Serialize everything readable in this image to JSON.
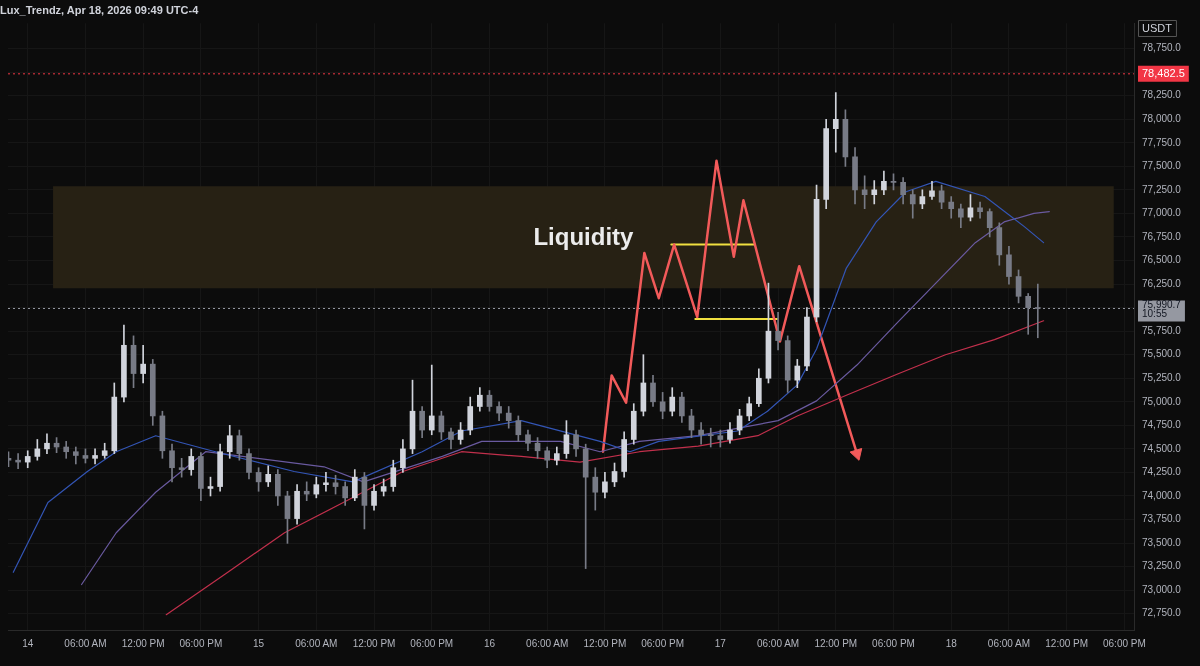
{
  "chart_data": {
    "type": "candlestick",
    "title": "Lux_Trendz, Apr 18, 2026 09:49 UTC-4",
    "ylabel": "USDT",
    "colors": [
      "#787b86",
      "#787b86",
      "#d1d4dc",
      "#d1d4dc",
      "#d1d4dc",
      "#787b86",
      "#787b86",
      "#787b86",
      "#787b86",
      "#d1d4dc",
      "#d1d4dc",
      "#d1d4dc",
      "#d1d4dc",
      "#787b86",
      "#d1d4dc",
      "#787b86",
      "#787b86",
      "#787b86",
      "#787b86",
      "#d1d4dc",
      "#787b86",
      "#d1d4dc",
      "#d1d4dc",
      "#d1d4dc",
      "#787b86",
      "#787b86",
      "#787b86",
      "#d1d4dc",
      "#787b86",
      "#787b86",
      "#d1d4dc",
      "#787b86",
      "#d1d4dc",
      "#d1d4dc",
      "#787b86",
      "#787b86",
      "#d1d4dc",
      "#787b86",
      "#d1d4dc",
      "#d1d4dc",
      "#d1d4dc",
      "#d1d4dc",
      "#d1d4dc",
      "#787b86",
      "#d1d4dc",
      "#787b86",
      "#787b86",
      "#d1d4dc",
      "#d1d4dc",
      "#d1d4dc",
      "#787b86",
      "#787b86",
      "#787b86",
      "#787b86",
      "#787b86",
      "#787b86",
      "#787b86",
      "#d1d4dc",
      "#d1d4dc",
      "#787b86",
      "#787b86",
      "#787b86",
      "#d1d4dc",
      "#d1d4dc",
      "#d1d4dc",
      "#d1d4dc",
      "#d1d4dc",
      "#787b86",
      "#787b86",
      "#d1d4dc",
      "#787b86",
      "#787b86",
      "#787b86",
      "#787b86",
      "#787b86",
      "#d1d4dc",
      "#d1d4dc",
      "#d1d4dc",
      "#d1d4dc",
      "#d1d4dc",
      "#787b86",
      "#787b86",
      "#d1d4dc",
      "#d1d4dc",
      "#d1d4dc",
      "#d1d4dc",
      "#d1d4dc",
      "#787b86",
      "#787b86",
      "#787b86",
      "#d1d4dc",
      "#d1d4dc",
      "#787b86",
      "#787b86",
      "#787b86",
      "#d1d4dc",
      "#d1d4dc",
      "#787b86",
      "#787b86",
      "#787b86",
      "#d1d4dc",
      "#787b86",
      "#787b86",
      "#787b86",
      "#787b86",
      "#787b86",
      "#787b86",
      "#787b86"
    ],
    "x": [
      "2026-04-13T22:00",
      "2026-04-13T23:00",
      "2026-04-14T00:00",
      "2026-04-14T01:00",
      "2026-04-14T02:00",
      "2026-04-14T03:00",
      "2026-04-14T04:00",
      "2026-04-14T05:00",
      "2026-04-14T06:00",
      "2026-04-14T07:00",
      "2026-04-14T08:00",
      "2026-04-14T09:00",
      "2026-04-14T10:00",
      "2026-04-14T11:00",
      "2026-04-14T12:00",
      "2026-04-14T13:00",
      "2026-04-14T14:00",
      "2026-04-14T15:00",
      "2026-04-14T16:00",
      "2026-04-14T17:00",
      "2026-04-14T18:00",
      "2026-04-14T19:00",
      "2026-04-14T20:00",
      "2026-04-14T21:00",
      "2026-04-14T22:00",
      "2026-04-14T23:00",
      "2026-04-15T00:00",
      "2026-04-15T01:00",
      "2026-04-15T02:00",
      "2026-04-15T03:00",
      "2026-04-15T04:00",
      "2026-04-15T05:00",
      "2026-04-15T06:00",
      "2026-04-15T07:00",
      "2026-04-15T08:00",
      "2026-04-15T09:00",
      "2026-04-15T10:00",
      "2026-04-15T11:00",
      "2026-04-15T12:00",
      "2026-04-15T13:00",
      "2026-04-15T14:00",
      "2026-04-15T15:00",
      "2026-04-15T16:00",
      "2026-04-15T17:00",
      "2026-04-15T18:00",
      "2026-04-15T19:00",
      "2026-04-15T20:00",
      "2026-04-15T21:00",
      "2026-04-15T22:00",
      "2026-04-15T23:00",
      "2026-04-16T00:00",
      "2026-04-16T01:00",
      "2026-04-16T02:00",
      "2026-04-16T03:00",
      "2026-04-16T04:00",
      "2026-04-16T05:00",
      "2026-04-16T06:00",
      "2026-04-16T07:00",
      "2026-04-16T08:00",
      "2026-04-16T09:00",
      "2026-04-16T10:00",
      "2026-04-16T11:00",
      "2026-04-16T12:00",
      "2026-04-16T13:00",
      "2026-04-16T14:00",
      "2026-04-16T15:00",
      "2026-04-16T16:00",
      "2026-04-16T17:00",
      "2026-04-16T18:00",
      "2026-04-16T19:00",
      "2026-04-16T20:00",
      "2026-04-16T21:00",
      "2026-04-16T22:00",
      "2026-04-16T23:00",
      "2026-04-17T00:00",
      "2026-04-17T01:00",
      "2026-04-17T02:00",
      "2026-04-17T03:00",
      "2026-04-17T04:00",
      "2026-04-17T05:00",
      "2026-04-17T06:00",
      "2026-04-17T07:00",
      "2026-04-17T08:00",
      "2026-04-17T09:00",
      "2026-04-17T10:00",
      "2026-04-17T11:00",
      "2026-04-17T12:00",
      "2026-04-17T13:00",
      "2026-04-17T14:00",
      "2026-04-17T15:00",
      "2026-04-17T16:00",
      "2026-04-17T17:00",
      "2026-04-17T18:00",
      "2026-04-17T19:00",
      "2026-04-17T20:00",
      "2026-04-17T21:00",
      "2026-04-17T22:00",
      "2026-04-17T23:00",
      "2026-04-18T00:00",
      "2026-04-18T01:00",
      "2026-04-18T02:00",
      "2026-04-18T03:00",
      "2026-04-18T04:00",
      "2026-04-18T05:00",
      "2026-04-18T06:00",
      "2026-04-18T07:00",
      "2026-04-18T08:00",
      "2026-04-18T09:00"
    ],
    "ohlc": [
      [
        74400,
        74470,
        74310,
        74380
      ],
      [
        74380,
        74450,
        74290,
        74360
      ],
      [
        74360,
        74480,
        74300,
        74420
      ],
      [
        74420,
        74600,
        74380,
        74500
      ],
      [
        74500,
        74660,
        74450,
        74560
      ],
      [
        74560,
        74620,
        74460,
        74520
      ],
      [
        74520,
        74580,
        74400,
        74470
      ],
      [
        74470,
        74520,
        74340,
        74430
      ],
      [
        74430,
        74500,
        74350,
        74400
      ],
      [
        74400,
        74500,
        74340,
        74430
      ],
      [
        74430,
        74560,
        74400,
        74480
      ],
      [
        74480,
        75200,
        74450,
        75050
      ],
      [
        75050,
        75815,
        75000,
        75600
      ],
      [
        75600,
        75700,
        75150,
        75300
      ],
      [
        75300,
        75600,
        75200,
        75400
      ],
      [
        75400,
        75450,
        74750,
        74850
      ],
      [
        74850,
        74900,
        74400,
        74480
      ],
      [
        74480,
        74550,
        74150,
        74300
      ],
      [
        74300,
        74400,
        74200,
        74280
      ],
      [
        74280,
        74500,
        74220,
        74420
      ],
      [
        74420,
        74460,
        73950,
        74080
      ],
      [
        74080,
        74200,
        74000,
        74100
      ],
      [
        74100,
        74550,
        74050,
        74470
      ],
      [
        74470,
        74750,
        74400,
        74640
      ],
      [
        74640,
        74700,
        74380,
        74450
      ],
      [
        74450,
        74500,
        74180,
        74250
      ],
      [
        74250,
        74300,
        74050,
        74150
      ],
      [
        74150,
        74320,
        74100,
        74230
      ],
      [
        74230,
        74280,
        73900,
        74000
      ],
      [
        74000,
        74050,
        73497,
        73760
      ],
      [
        73760,
        74120,
        73700,
        74050
      ],
      [
        74050,
        74150,
        73950,
        74020
      ],
      [
        74020,
        74200,
        73980,
        74120
      ],
      [
        74120,
        74250,
        74050,
        74140
      ],
      [
        74140,
        74220,
        74020,
        74100
      ],
      [
        74100,
        74150,
        73900,
        73980
      ],
      [
        73980,
        74280,
        73950,
        74200
      ],
      [
        74200,
        74250,
        73650,
        73900
      ],
      [
        73900,
        74120,
        73850,
        74050
      ],
      [
        74050,
        74180,
        74000,
        74100
      ],
      [
        74100,
        74380,
        74050,
        74300
      ],
      [
        74300,
        74600,
        74250,
        74500
      ],
      [
        74500,
        75230,
        74450,
        74900
      ],
      [
        74900,
        74950,
        74620,
        74700
      ],
      [
        74700,
        75390,
        74650,
        74850
      ],
      [
        74850,
        74900,
        74600,
        74680
      ],
      [
        74680,
        74720,
        74500,
        74600
      ],
      [
        74600,
        74780,
        74550,
        74700
      ],
      [
        74700,
        75050,
        74650,
        74950
      ],
      [
        74950,
        75150,
        74900,
        75070
      ],
      [
        75070,
        75120,
        74900,
        74950
      ],
      [
        74950,
        75000,
        74800,
        74880
      ],
      [
        74880,
        74950,
        74720,
        74800
      ],
      [
        74800,
        74850,
        74580,
        74650
      ],
      [
        74650,
        74700,
        74480,
        74560
      ],
      [
        74560,
        74620,
        74400,
        74480
      ],
      [
        74480,
        74520,
        74300,
        74380
      ],
      [
        74380,
        74520,
        74330,
        74450
      ],
      [
        74450,
        74800,
        74400,
        74650
      ],
      [
        74650,
        74700,
        74420,
        74500
      ],
      [
        74500,
        74550,
        73229,
        74200
      ],
      [
        74200,
        74300,
        73850,
        74040
      ],
      [
        74040,
        74250,
        73980,
        74150
      ],
      [
        74150,
        74350,
        74100,
        74260
      ],
      [
        74260,
        74680,
        74200,
        74600
      ],
      [
        74600,
        74980,
        74550,
        74900
      ],
      [
        74900,
        75500,
        74850,
        75200
      ],
      [
        75200,
        75280,
        74950,
        75000
      ],
      [
        75000,
        75100,
        74820,
        74900
      ],
      [
        74900,
        75150,
        74850,
        75050
      ],
      [
        75050,
        75100,
        74780,
        74850
      ],
      [
        74850,
        74920,
        74620,
        74700
      ],
      [
        74700,
        74780,
        74550,
        74650
      ],
      [
        74650,
        74720,
        74520,
        74640
      ],
      [
        74640,
        74700,
        74520,
        74600
      ],
      [
        74600,
        74780,
        74560,
        74700
      ],
      [
        74700,
        74920,
        74650,
        74850
      ],
      [
        74850,
        75050,
        74800,
        74980
      ],
      [
        74980,
        75350,
        74950,
        75250
      ],
      [
        75250,
        76260,
        75200,
        75750
      ],
      [
        75750,
        75950,
        75550,
        75650
      ],
      [
        75650,
        75700,
        75100,
        75230
      ],
      [
        75230,
        75450,
        75150,
        75380
      ],
      [
        75380,
        76000,
        75330,
        75900
      ],
      [
        75900,
        77300,
        75850,
        77150
      ],
      [
        77150,
        78000,
        77050,
        77900
      ],
      [
        77900,
        78284,
        77650,
        78000
      ],
      [
        78000,
        78100,
        77500,
        77600
      ],
      [
        77600,
        77700,
        77100,
        77250
      ],
      [
        77250,
        77400,
        77050,
        77200
      ],
      [
        77200,
        77350,
        77100,
        77250
      ],
      [
        77250,
        77450,
        77200,
        77340
      ],
      [
        77340,
        77420,
        77250,
        77330
      ],
      [
        77330,
        77380,
        77100,
        77200
      ],
      [
        77200,
        77250,
        76950,
        77100
      ],
      [
        77100,
        77250,
        77050,
        77180
      ],
      [
        77180,
        77340,
        77150,
        77240
      ],
      [
        77240,
        77300,
        77050,
        77120
      ],
      [
        77120,
        77180,
        76950,
        77050
      ],
      [
        77050,
        77100,
        76850,
        76960
      ],
      [
        76960,
        77200,
        76920,
        77060
      ],
      [
        77060,
        77120,
        76950,
        77020
      ],
      [
        77020,
        77050,
        76750,
        76850
      ],
      [
        76850,
        76900,
        76450,
        76560
      ],
      [
        76560,
        76650,
        76250,
        76330
      ],
      [
        76330,
        76400,
        76050,
        76120
      ],
      [
        76120,
        76150,
        75717,
        76000
      ],
      [
        76000,
        76250,
        75680,
        75990.7
      ]
    ],
    "series": [
      {
        "type": "line",
        "color": "#3355b5",
        "x": [
          "2026-04-13T22:30",
          "2026-04-14T02:06",
          "2026-04-14T06:12",
          "2026-04-14T09:12",
          "2026-04-14T13:18",
          "2026-04-14T19:30",
          "2026-04-15T03:42",
          "2026-04-15T09:48",
          "2026-04-15T17:00",
          "2026-04-15T21:06",
          "2026-04-16T03:18",
          "2026-04-16T11:30",
          "2026-04-16T14:36",
          "2026-04-16T17:36",
          "2026-04-17T01:48",
          "2026-04-17T04:54",
          "2026-04-17T08:00",
          "2026-04-17T10:00",
          "2026-04-17T13:06",
          "2026-04-17T16:12",
          "2026-04-17T19:18",
          "2026-04-17T22:24",
          "2026-04-18T03:30",
          "2026-04-18T07:36",
          "2026-04-18T09:36"
        ],
        "values": [
          73190,
          73930,
          74260,
          74470,
          74640,
          74470,
          74260,
          74150,
          74470,
          74690,
          74800,
          74580,
          74470,
          74580,
          74690,
          74900,
          75180,
          75560,
          76420,
          76910,
          77230,
          77340,
          77180,
          76860,
          76690
        ]
      },
      {
        "type": "line",
        "color": "#6a5aa0",
        "x": [
          "2026-04-14T05:36",
          "2026-04-14T09:12",
          "2026-04-14T13:18",
          "2026-04-14T18:30",
          "2026-04-15T06:48",
          "2026-04-15T10:54",
          "2026-04-15T19:06",
          "2026-04-15T23:12",
          "2026-04-16T07:24",
          "2026-04-16T11:30",
          "2026-04-16T15:36",
          "2026-04-16T21:42",
          "2026-04-17T06:00",
          "2026-04-17T10:00",
          "2026-04-17T14:12",
          "2026-04-17T18:18",
          "2026-04-17T22:24",
          "2026-04-18T02:30",
          "2026-04-18T05:30",
          "2026-04-18T08:36",
          "2026-04-18T10:12"
        ],
        "values": [
          73060,
          73610,
          74040,
          74470,
          74310,
          74150,
          74420,
          74580,
          74580,
          74470,
          74580,
          74640,
          74800,
          75010,
          75390,
          75830,
          76260,
          76690,
          76910,
          77000,
          77020
        ]
      },
      {
        "type": "line",
        "color": "#c2304c",
        "x": [
          "2026-04-14T14:24",
          "2026-04-14T20:30",
          "2026-04-15T02:42",
          "2026-04-15T08:48",
          "2026-04-15T15:00",
          "2026-04-15T21:06",
          "2026-04-16T03:18",
          "2026-04-16T09:24",
          "2026-04-16T15:36",
          "2026-04-16T21:42",
          "2026-04-17T03:54",
          "2026-04-17T08:00",
          "2026-04-17T13:06",
          "2026-04-17T18:18",
          "2026-04-17T23:24",
          "2026-04-18T04:30",
          "2026-04-18T09:36"
        ],
        "values": [
          72740,
          73170,
          73610,
          73930,
          74260,
          74470,
          74420,
          74360,
          74470,
          74530,
          74640,
          74850,
          75070,
          75290,
          75500,
          75660,
          75860
        ]
      },
      {
        "type": "line",
        "color": "#f25a5a",
        "x": [
          "2026-04-16T11:48",
          "2026-04-16T12:42",
          "2026-04-16T14:12",
          "2026-04-16T16:06",
          "2026-04-16T17:36",
          "2026-04-16T19:12",
          "2026-04-16T21:36",
          "2026-04-16T23:36",
          "2026-04-17T01:24",
          "2026-04-17T02:24",
          "2026-04-17T06:12",
          "2026-04-17T08:12",
          "2026-04-17T14:12"
        ],
        "values": [
          74470,
          75280,
          74990,
          76580,
          76100,
          76670,
          75900,
          77560,
          76540,
          77140,
          75640,
          76440,
          74450
        ]
      },
      {
        "type": "line",
        "color": "#f0e040",
        "x": [
          "2026-04-16T18:54",
          "2026-04-17T03:30"
        ],
        "values": [
          76670,
          76670
        ]
      },
      {
        "type": "line",
        "color": "#f0e040",
        "x": [
          "2026-04-16T21:24",
          "2026-04-17T05:54"
        ],
        "values": [
          75880,
          75880
        ]
      }
    ],
    "bands": [
      {
        "axis": "y",
        "from": 76205,
        "to": 77288,
        "color": "#272114",
        "label": "Liquidity"
      }
    ],
    "ref_lines": [
      {
        "axis": "y",
        "value": 78482.5,
        "label": "78,482.5",
        "color": "#f23645",
        "line_style": "dotted"
      },
      {
        "axis": "y",
        "value": 75990.7,
        "label": "75,990.7",
        "color": "#9598a1",
        "line_style": "dotted"
      }
    ],
    "annotations": [
      "10:55"
    ],
    "xlim": [
      "2026-04-13T21:57",
      "2026-04-18T19:00"
    ],
    "xticks": [
      {
        "value": "2026-04-14",
        "label": "14"
      },
      {
        "value": "2026-04-14T06:00",
        "label": "06:00 AM"
      },
      {
        "value": "2026-04-14T12:00",
        "label": "12:00 PM"
      },
      {
        "value": "2026-04-14T18:00",
        "label": "06:00 PM"
      },
      {
        "value": "2026-04-15",
        "label": "15"
      },
      {
        "value": "2026-04-15T06:00",
        "label": "06:00 AM"
      },
      {
        "value": "2026-04-15T12:00",
        "label": "12:00 PM"
      },
      {
        "value": "2026-04-15T18:00",
        "label": "06:00 PM"
      },
      {
        "value": "2026-04-16",
        "label": "16"
      },
      {
        "value": "2026-04-16T06:00",
        "label": "06:00 AM"
      },
      {
        "value": "2026-04-16T12:00",
        "label": "12:00 PM"
      },
      {
        "value": "2026-04-16T18:00",
        "label": "06:00 PM"
      },
      {
        "value": "2026-04-17",
        "label": "17"
      },
      {
        "value": "2026-04-17T06:00",
        "label": "06:00 AM"
      },
      {
        "value": "2026-04-17T12:00",
        "label": "12:00 PM"
      },
      {
        "value": "2026-04-17T18:00",
        "label": "06:00 PM"
      },
      {
        "value": "2026-04-18",
        "label": "18"
      },
      {
        "value": "2026-04-18T06:00",
        "label": "06:00 AM"
      },
      {
        "value": "2026-04-18T12:00",
        "label": "12:00 PM"
      },
      {
        "value": "2026-04-18T18:00",
        "label": "06:00 PM"
      }
    ],
    "ylim": [
      72577,
      79020
    ],
    "yticks": [
      {
        "value": 72750,
        "label": "72,750.0"
      },
      {
        "value": 73000,
        "label": "73,000.0"
      },
      {
        "value": 73250,
        "label": "73,250.0"
      },
      {
        "value": 73500,
        "label": "73,500.0"
      },
      {
        "value": 73750,
        "label": "73,750.0"
      },
      {
        "value": 74000,
        "label": "74,000.0"
      },
      {
        "value": 74250,
        "label": "74,250.0"
      },
      {
        "value": 74500,
        "label": "74,500.0"
      },
      {
        "value": 74750,
        "label": "74,750.0"
      },
      {
        "value": 75000,
        "label": "75,000.0"
      },
      {
        "value": 75250,
        "label": "75,250.0"
      },
      {
        "value": 75500,
        "label": "75,500.0"
      },
      {
        "value": 75750,
        "label": "75,750.0"
      },
      {
        "value": 76000,
        "label": null
      },
      {
        "value": 76250,
        "label": "76,250.0"
      },
      {
        "value": 76500,
        "label": "76,500.0"
      },
      {
        "value": 76750,
        "label": "76,750.0"
      },
      {
        "value": 77000,
        "label": "77,000.0"
      },
      {
        "value": 77250,
        "label": "77,250.0"
      },
      {
        "value": 77500,
        "label": "77,500.0"
      },
      {
        "value": 77750,
        "label": "77,750.0"
      },
      {
        "value": 78000,
        "label": "78,000.0"
      },
      {
        "value": 78250,
        "label": "78,250.0"
      },
      {
        "value": 78500,
        "label": null
      },
      {
        "value": 78750,
        "label": "78,750.0"
      }
    ],
    "grid": true,
    "legend": false
  }
}
